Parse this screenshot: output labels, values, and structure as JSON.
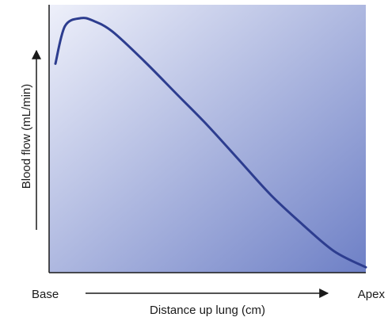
{
  "chart_data": {
    "type": "line",
    "title": "",
    "xlabel": "Distance up lung (cm)",
    "ylabel": "Blood flow (mL/min)",
    "x_tick_labels": [
      "Base",
      "Apex"
    ],
    "xlim": [
      0,
      100
    ],
    "ylim": [
      0,
      100
    ],
    "grid": false,
    "axis_values_printed": false,
    "background_gradient": {
      "from": "#eef0fa",
      "to": "#6e80c6"
    },
    "series": [
      {
        "color": "#2d3d8f",
        "x": [
          2,
          5,
          10,
          14,
          20,
          30,
          40,
          50,
          60,
          70,
          80,
          90,
          100
        ],
        "y": [
          78,
          92,
          95,
          94,
          90,
          79,
          67,
          55,
          42,
          29,
          18,
          8,
          2
        ]
      }
    ]
  }
}
